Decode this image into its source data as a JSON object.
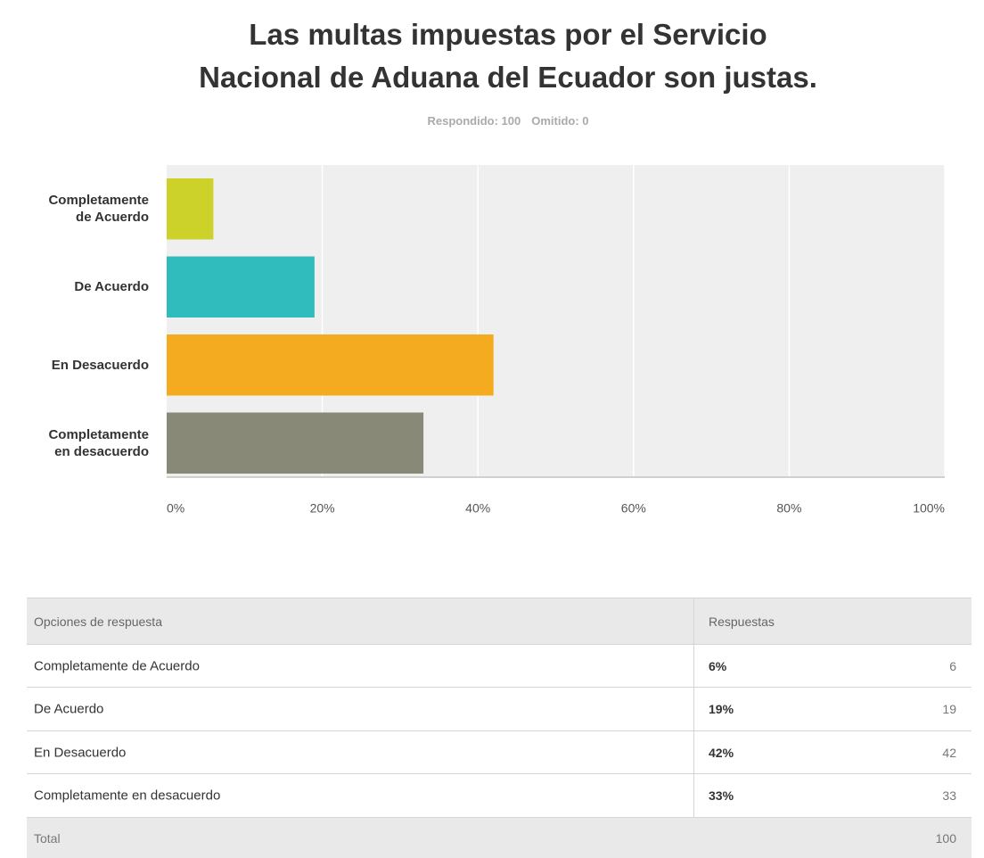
{
  "chart_data": {
    "type": "bar",
    "orientation": "horizontal",
    "title": [
      "Las multas impuestas por el Servicio",
      "Nacional de Aduana del Ecuador son justas."
    ],
    "summary": {
      "answered": "Respondido: 100",
      "skipped": "Omitido: 0"
    },
    "categories": [
      "Completamente de Acuerdo",
      "De Acuerdo",
      "En Desacuerdo",
      "Completamente en desacuerdo"
    ],
    "values": [
      6,
      19,
      42,
      33
    ],
    "colors": [
      "#ccd22a",
      "#30bcbc",
      "#f5ab1f",
      "#898977"
    ],
    "xlim": [
      0,
      100
    ],
    "xticks": [
      {
        "value": 0,
        "label": "0%"
      },
      {
        "value": 20,
        "label": "20%"
      },
      {
        "value": 40,
        "label": "40%"
      },
      {
        "value": 60,
        "label": "60%"
      },
      {
        "value": 80,
        "label": "80%"
      },
      {
        "value": 100,
        "label": "100%"
      }
    ],
    "grid": true
  },
  "table": {
    "header": [
      "Opciones de respuesta",
      "Respuestas"
    ],
    "rows": [
      [
        "Completamente de Acuerdo",
        "6%",
        6
      ],
      [
        "De Acuerdo",
        "19%",
        19
      ],
      [
        "En Desacuerdo",
        "42%",
        42
      ],
      [
        "Completamente en desacuerdo",
        "33%",
        33
      ]
    ],
    "total": [
      "Total",
      100
    ]
  }
}
